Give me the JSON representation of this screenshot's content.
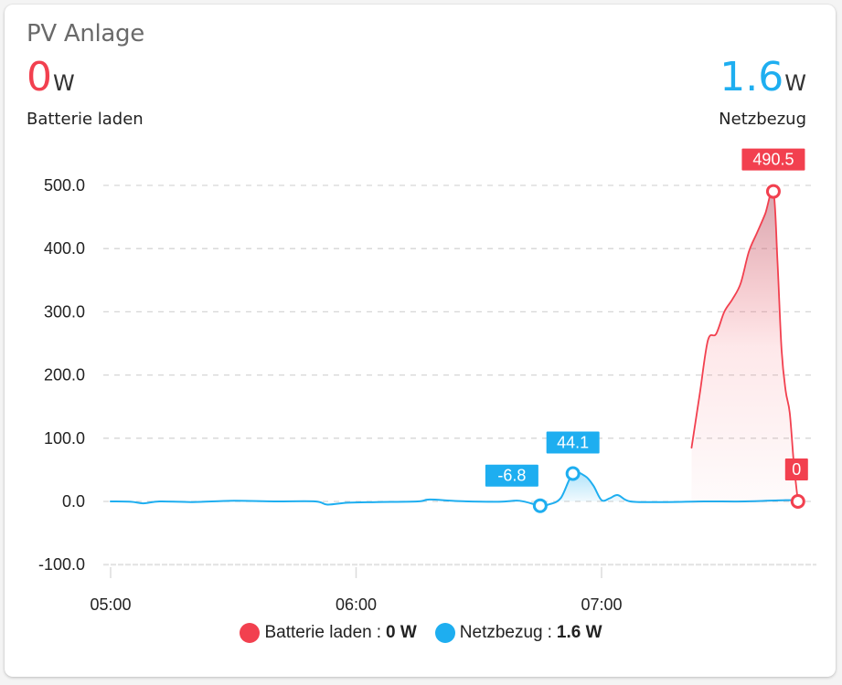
{
  "card": {
    "title": "PV Anlage",
    "states": [
      {
        "value": "0",
        "unit": "W",
        "label": "Batterie laden",
        "color": "#f2404f"
      },
      {
        "value": "1.6",
        "unit": "W",
        "label": "Netzbezug",
        "color": "#1eaef0"
      }
    ]
  },
  "legend": [
    {
      "name": "Batterie laden",
      "sep": ": ",
      "value": "0 W",
      "color": "#f2404f"
    },
    {
      "name": "Netzbezug",
      "sep": ": ",
      "value": "1.6 W",
      "color": "#1eaef0"
    }
  ],
  "chart_data": {
    "type": "line",
    "title": "PV Anlage",
    "xlabel": "",
    "ylabel": "",
    "ylim": [
      -100,
      500
    ],
    "yticks": [
      "500.0",
      "400.0",
      "300.0",
      "200.0",
      "100.0",
      "0.0",
      "-100.0"
    ],
    "xticks": [
      "05:00",
      "06:00",
      "07:00"
    ],
    "grid": true,
    "legend_position": "bottom",
    "series": [
      {
        "name": "Batterie laden",
        "color": "#f2404f",
        "unit": "W",
        "fill": "gradient-area",
        "points": [
          [
            "07:22",
            85
          ],
          [
            "07:24",
            170
          ],
          [
            "07:26",
            255
          ],
          [
            "07:28",
            265
          ],
          [
            "07:30",
            300
          ],
          [
            "07:32",
            320
          ],
          [
            "07:34",
            345
          ],
          [
            "07:36",
            395
          ],
          [
            "07:38",
            425
          ],
          [
            "07:40",
            455
          ],
          [
            "07:42",
            490.5
          ],
          [
            "07:43",
            380
          ],
          [
            "07:44",
            240
          ],
          [
            "07:45",
            175
          ],
          [
            "07:46",
            140
          ],
          [
            "07:47",
            60
          ],
          [
            "07:48",
            0
          ]
        ],
        "annotations": [
          {
            "label": "490.5",
            "x": "07:42",
            "y": 490.5,
            "type": "max"
          },
          {
            "label": "0",
            "x": "07:48",
            "y": 0,
            "type": "last"
          }
        ]
      },
      {
        "name": "Netzbezug",
        "color": "#1eaef0",
        "unit": "W",
        "fill": "gradient-area-positive",
        "points": [
          [
            "05:00",
            0
          ],
          [
            "05:05",
            -0.5
          ],
          [
            "05:08",
            -3
          ],
          [
            "05:12",
            0
          ],
          [
            "05:20",
            -1
          ],
          [
            "05:30",
            1
          ],
          [
            "05:40",
            0
          ],
          [
            "05:50",
            0
          ],
          [
            "05:53",
            -5
          ],
          [
            "05:58",
            -2
          ],
          [
            "06:05",
            -1
          ],
          [
            "06:15",
            0
          ],
          [
            "06:18",
            3
          ],
          [
            "06:25",
            0.5
          ],
          [
            "06:35",
            -0.5
          ],
          [
            "06:40",
            1
          ],
          [
            "06:45",
            -6.8
          ],
          [
            "06:47",
            -5
          ],
          [
            "06:50",
            5
          ],
          [
            "06:53",
            44.1
          ],
          [
            "06:56",
            40
          ],
          [
            "06:58",
            25
          ],
          [
            "07:00",
            2
          ],
          [
            "07:02",
            5
          ],
          [
            "07:04",
            10
          ],
          [
            "07:07",
            0
          ],
          [
            "07:15",
            -1
          ],
          [
            "07:25",
            0
          ],
          [
            "07:35",
            0
          ],
          [
            "07:45",
            2
          ],
          [
            "07:48",
            1.6
          ]
        ],
        "annotations": [
          {
            "label": "-6.8",
            "x": "06:45",
            "y": -6.8,
            "type": "min"
          },
          {
            "label": "44.1",
            "x": "06:53",
            "y": 44.1,
            "type": "max"
          }
        ]
      }
    ]
  }
}
